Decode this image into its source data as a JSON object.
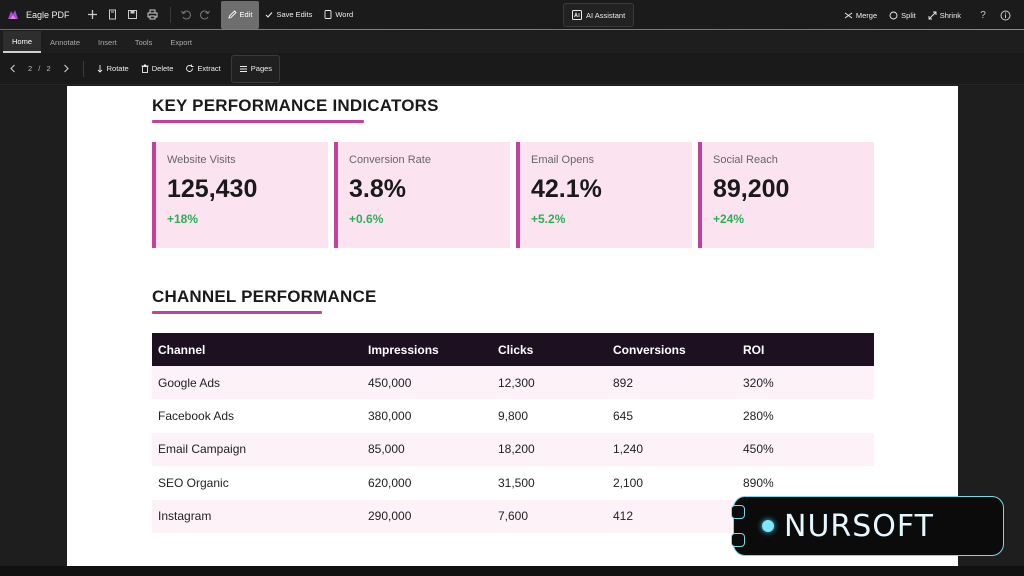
{
  "app": {
    "name": "Eagle PDF",
    "accent": "#c2429a"
  },
  "titlebar": {
    "edit_label": "Edit",
    "save_edits_label": "Save Edits",
    "word_label": "Word",
    "ai_label": "AI Assistant",
    "merge_label": "Merge",
    "split_label": "Split",
    "shrink_label": "Shrink",
    "help_icon": "?",
    "info_icon": "info-icon"
  },
  "menu": {
    "tabs": [
      {
        "label": "Home"
      },
      {
        "label": "Annotate"
      },
      {
        "label": "Insert"
      },
      {
        "label": "Tools"
      },
      {
        "label": "Export"
      }
    ]
  },
  "toolbar2": {
    "current_page": "2",
    "separator": "/",
    "total_pages": "2",
    "rotate_label": "Rotate",
    "delete_label": "Delete",
    "extract_label": "Extract",
    "pages_label": "Pages"
  },
  "document": {
    "kpi_title": "KEY PERFORMANCE INDICATORS",
    "kpis": [
      {
        "label": "Website Visits",
        "value": "125,430",
        "delta": "+18%"
      },
      {
        "label": "Conversion Rate",
        "value": "3.8%",
        "delta": "+0.6%"
      },
      {
        "label": "Email Opens",
        "value": "42.1%",
        "delta": "+5.2%"
      },
      {
        "label": "Social Reach",
        "value": "89,200",
        "delta": "+24%"
      }
    ],
    "channel_title": "CHANNEL PERFORMANCE",
    "table": {
      "headers": [
        "Channel",
        "Impressions",
        "Clicks",
        "Conversions",
        "ROI"
      ],
      "rows": [
        [
          "Google Ads",
          "450,000",
          "12,300",
          "892",
          "320%"
        ],
        [
          "Facebook Ads",
          "380,000",
          "9,800",
          "645",
          "280%"
        ],
        [
          "Email Campaign",
          "85,000",
          "18,200",
          "1,240",
          "450%"
        ],
        [
          "SEO Organic",
          "620,000",
          "31,500",
          "2,100",
          "890%"
        ],
        [
          "Instagram",
          "290,000",
          "7,600",
          "412",
          ""
        ]
      ]
    }
  },
  "watermark": {
    "text": "NURSOFT"
  }
}
